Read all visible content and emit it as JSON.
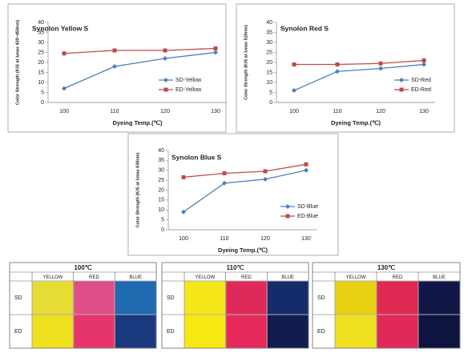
{
  "chart_data": [
    {
      "type": "line",
      "title": "Synolon Yellow S",
      "title_color": "#e46c0a",
      "y_label": "Color Strength (K/S at λmax 430~450nm)",
      "x_label": "Dyeing Temp.(℃)",
      "categories": [
        "100",
        "110",
        "120",
        "130"
      ],
      "series": [
        {
          "name": "SD-Yellow",
          "color": "#4a7ebb",
          "marker": "diamond",
          "values": [
            7,
            18,
            22,
            25
          ]
        },
        {
          "name": "ED-Yellow",
          "color": "#be4b48",
          "marker": "square",
          "values": [
            24.5,
            26,
            26,
            27
          ]
        }
      ],
      "ylim": [
        0,
        40
      ],
      "yticks": [
        0,
        5,
        10,
        15,
        20,
        25,
        30,
        35,
        40
      ]
    },
    {
      "type": "line",
      "title": "Synolon Red S",
      "title_color": "#c00000",
      "y_label": "Color Strength (K/S at λmax 520nm)",
      "x_label": "Dyeing Temp.(℃)",
      "categories": [
        "100",
        "110",
        "120",
        "130"
      ],
      "series": [
        {
          "name": "SD-Red",
          "color": "#4a7ebb",
          "marker": "diamond",
          "values": [
            6,
            15.5,
            17,
            19
          ]
        },
        {
          "name": "ED-Red",
          "color": "#be4b48",
          "marker": "square",
          "values": [
            19,
            19,
            19.5,
            21
          ]
        }
      ],
      "ylim": [
        0,
        40
      ],
      "yticks": [
        0,
        5,
        10,
        15,
        20,
        25,
        30,
        35,
        40
      ]
    },
    {
      "type": "line",
      "title": "Synolon Blue S",
      "title_color": "#1f2fa0",
      "y_label": "Color Strength (K/S at λmax 630nm)",
      "x_label": "Dyeing Temp.(℃)",
      "categories": [
        "100",
        "110",
        "120",
        "130"
      ],
      "series": [
        {
          "name": "SD-Blue",
          "color": "#4a7ebb",
          "marker": "diamond",
          "values": [
            9,
            23.5,
            25.5,
            30
          ]
        },
        {
          "name": "ED-Blue",
          "color": "#be4b48",
          "marker": "square",
          "values": [
            26.5,
            28.5,
            29.5,
            33
          ]
        }
      ],
      "ylim": [
        0,
        40
      ],
      "yticks": [
        0,
        5,
        10,
        15,
        20,
        25,
        30,
        35,
        40
      ]
    }
  ],
  "swatch_tables": [
    {
      "title": "100℃",
      "columns": [
        "YELLOW",
        "RED",
        "BLUE"
      ],
      "rows": [
        {
          "label": "SD",
          "colors": [
            "#e6dc34",
            "#de4f88",
            "#1f6ab0"
          ]
        },
        {
          "label": "ED",
          "colors": [
            "#efe020",
            "#e6356a",
            "#1a3a80"
          ]
        }
      ]
    },
    {
      "title": "110℃",
      "columns": [
        "YELLOW",
        "RED",
        "BLUE"
      ],
      "rows": [
        {
          "label": "SD",
          "colors": [
            "#f4e618",
            "#de2a5a",
            "#152c6a"
          ]
        },
        {
          "label": "ED",
          "colors": [
            "#f7e812",
            "#e6295b",
            "#111c50"
          ]
        }
      ]
    },
    {
      "title": "130℃",
      "columns": [
        "YELLOW",
        "RED",
        "BLUE"
      ],
      "rows": [
        {
          "label": "SD",
          "colors": [
            "#e7d012",
            "#de2952",
            "#111848"
          ]
        },
        {
          "label": "ED",
          "colors": [
            "#efe022",
            "#df2958",
            "#0d1440"
          ]
        }
      ]
    }
  ]
}
